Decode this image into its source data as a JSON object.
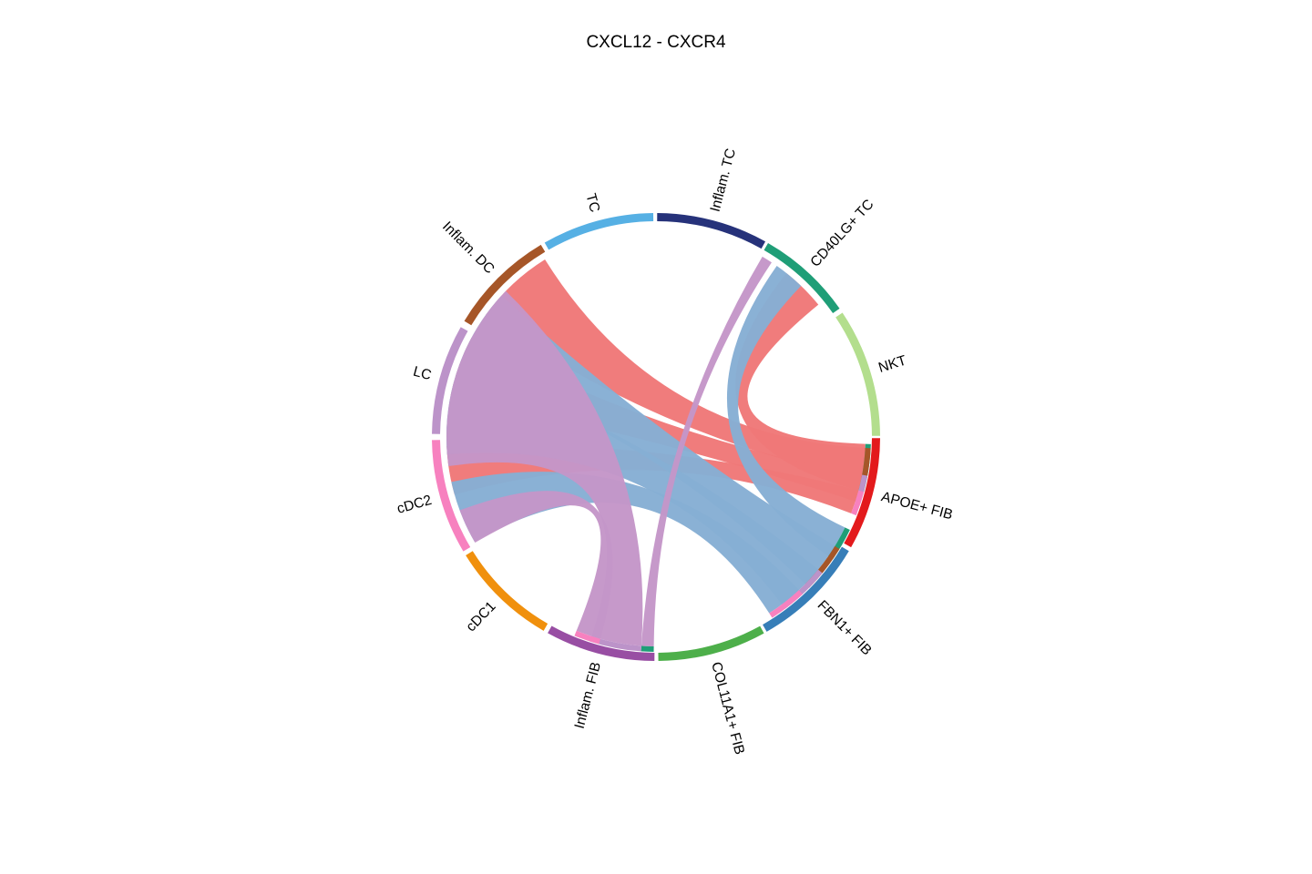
{
  "title": "CXCL12 - CXCR4",
  "chart_data": {
    "type": "chord",
    "title": "CXCL12 - CXCR4",
    "sectors": [
      {
        "name": "Inflam. TC",
        "color": "#26327a",
        "start": 0.3,
        "end": 29.2
      },
      {
        "name": "CD40LG+ TC",
        "color": "#1f9e77",
        "start": 30.0,
        "end": 55.0
      },
      {
        "name": "NKT",
        "color": "#b3de8d",
        "start": 56.3,
        "end": 89.7
      },
      {
        "name": "APOE+ FIB",
        "color": "#e31a1c",
        "start": 90.3,
        "end": 119.5
      },
      {
        "name": "FBN1+ FIB",
        "color": "#377eb8",
        "start": 120.6,
        "end": 150.4
      },
      {
        "name": "COL11A1+ FIB",
        "color": "#4daf4a",
        "start": 151.2,
        "end": 179.4
      },
      {
        "name": "Inflam. FIB",
        "color": "#984ea3",
        "start": 180.4,
        "end": 208.9
      },
      {
        "name": "cDC1",
        "color": "#f0900d",
        "start": 210.1,
        "end": 238.1
      },
      {
        "name": "cDC2",
        "color": "#f781bf",
        "start": 239.3,
        "end": 269.2
      },
      {
        "name": "LC",
        "color": "#bc93c9",
        "start": 270.8,
        "end": 299.4
      },
      {
        "name": "Inflam. DC",
        "color": "#a65628",
        "start": 301.2,
        "end": 329.1
      },
      {
        "name": "TC",
        "color": "#56b0e4",
        "start": 330.2,
        "end": 359.3
      }
    ],
    "links": [
      {
        "from": "APOE+ FIB",
        "to": "CD40LG+ TC",
        "color": "#f07878",
        "src": [
          91.9,
          104.8
        ],
        "dst": [
          38.5,
          50.8
        ]
      },
      {
        "from": "APOE+ FIB",
        "to": "Inflam. DC",
        "color": "#f07878",
        "src": [
          93.0,
          101.4
        ],
        "dst": [
          305.7,
          328.0
        ]
      },
      {
        "from": "APOE+ FIB",
        "to": "LC",
        "color": "#f07878",
        "src": [
          100.4,
          107.9
        ],
        "dst": [
          281.5,
          298.4
        ]
      },
      {
        "from": "APOE+ FIB",
        "to": "cDC2",
        "color": "#f07878",
        "src": [
          104.8,
          111.4
        ],
        "dst": [
          254.0,
          267.5
        ]
      },
      {
        "from": "FBN1+ FIB",
        "to": "CD40LG+ TC",
        "color": "#86aed4",
        "src": [
          115.6,
          124.7
        ],
        "dst": [
          35.2,
          43.8
        ]
      },
      {
        "from": "FBN1+ FIB",
        "to": "Inflam. DC",
        "color": "#86aed4",
        "src": [
          121.4,
          134.6
        ],
        "dst": [
          290.0,
          312.5
        ]
      },
      {
        "from": "FBN1+ FIB",
        "to": "LC",
        "color": "#86aed4",
        "src": [
          129.3,
          143.1
        ],
        "dst": [
          265.2,
          290.1
        ]
      },
      {
        "from": "FBN1+ FIB",
        "to": "cDC2",
        "color": "#86aed4",
        "src": [
          137.0,
          147.3
        ],
        "dst": [
          240.0,
          257.6
        ]
      },
      {
        "from": "Inflam. FIB",
        "to": "CD40LG+ TC",
        "color": "#c496c8",
        "src": [
          180.6,
          184.0
        ],
        "dst": [
          30.5,
          33.5
        ]
      },
      {
        "from": "Inflam. FIB",
        "to": "LC",
        "color": "#c496c8",
        "src": [
          184.0,
          197.9
        ],
        "dst": [
          262.0,
          314.2
        ]
      },
      {
        "from": "Inflam. FIB",
        "to": "cDC2",
        "color": "#c496c8",
        "src": [
          195.4,
          202.3
        ],
        "dst": [
          239.7,
          249.5
        ]
      }
    ]
  }
}
